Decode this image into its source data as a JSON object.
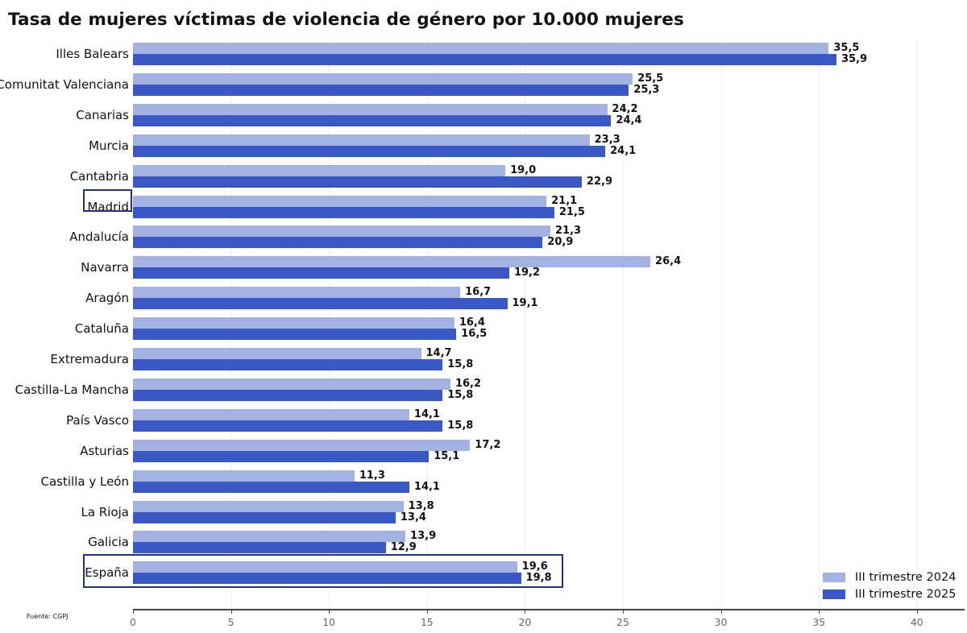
{
  "title": "Tasa de mujeres víctimas de violencia de género por 10.000 mujeres",
  "source": "Fuente: CGPJ",
  "colors": {
    "series_2024": "#a4b2e3",
    "series_2025": "#3a57c6",
    "highlight_box": "#23308a",
    "axis": "#444444",
    "grid": "#efeff2"
  },
  "legend": {
    "items": [
      {
        "label": "III trimestre 2024",
        "color": "#a4b2e3"
      },
      {
        "label": "III trimestre 2025",
        "color": "#3a57c6"
      }
    ]
  },
  "x_axis": {
    "ticks": [
      "0",
      "5",
      "10",
      "15",
      "20",
      "25",
      "30",
      "35",
      "40"
    ]
  },
  "chart_data": {
    "type": "bar",
    "orientation": "horizontal",
    "title": "Tasa de mujeres víctimas de violencia de género por 10.000 mujeres",
    "xlabel": "",
    "ylabel": "",
    "xlim": [
      0,
      42.5
    ],
    "grid": "vertical",
    "legend_position": "lower right",
    "highlighted_categories": [
      "Madrid",
      "España"
    ],
    "categories": [
      "Illes Balears",
      "Comunitat Valenciana",
      "Canarias",
      "Murcia",
      "Cantabria",
      "Madrid",
      "Andalucía",
      "Navarra",
      "Aragón",
      "Cataluña",
      "Extremadura",
      "Castilla-La Mancha",
      "País Vasco",
      "Asturias",
      "Castilla y León",
      "La Rioja",
      "Galicia",
      "España"
    ],
    "series": [
      {
        "name": "III trimestre 2024",
        "values": [
          35.5,
          25.5,
          24.2,
          23.3,
          19.0,
          21.1,
          21.3,
          26.4,
          16.7,
          16.4,
          14.7,
          16.2,
          14.1,
          17.2,
          11.3,
          13.8,
          13.9,
          19.6
        ],
        "labels": [
          "35,5",
          "25,5",
          "24,2",
          "23,3",
          "19,0",
          "21,1",
          "21,3",
          "26,4",
          "16,7",
          "16,4",
          "14,7",
          "16,2",
          "14,1",
          "17,2",
          "11,3",
          "13,8",
          "13,9",
          "19,6"
        ]
      },
      {
        "name": "III trimestre 2025",
        "values": [
          35.9,
          25.3,
          24.4,
          24.1,
          22.9,
          21.5,
          20.9,
          19.2,
          19.1,
          16.5,
          15.8,
          15.8,
          15.8,
          15.1,
          14.1,
          13.4,
          12.9,
          19.8
        ],
        "labels": [
          "35,9",
          "25,3",
          "24,4",
          "24,1",
          "22,9",
          "21,5",
          "20,9",
          "19,2",
          "19,1",
          "16,5",
          "15,8",
          "15,8",
          "15,8",
          "15,1",
          "14,1",
          "13,4",
          "12,9",
          "19,8"
        ]
      }
    ]
  }
}
